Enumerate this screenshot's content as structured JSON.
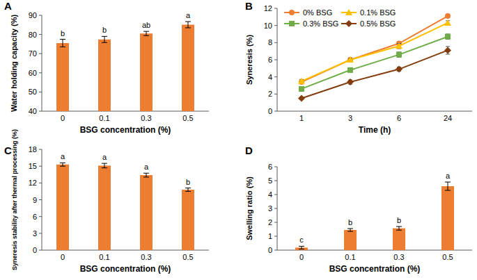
{
  "chart_data": [
    {
      "type": "bar",
      "title": "A",
      "categories": [
        "0",
        "0.1",
        "0.3",
        "0.5"
      ],
      "values": [
        75.5,
        77.4,
        80.5,
        85.1
      ],
      "errors": [
        2.0,
        1.6,
        1.1,
        1.6
      ],
      "annotations": [
        "b",
        "b",
        "ab",
        "a"
      ],
      "color": "#ED7D31",
      "x_label": "BSG concentration (%)",
      "y_label": "Water holding capacity (%)",
      "ylim": [
        40,
        90
      ],
      "yticks": [
        40,
        50,
        60,
        70,
        80,
        90
      ]
    },
    {
      "type": "line",
      "title": "B",
      "categories": [
        "1",
        "3",
        "6",
        "24"
      ],
      "series": [
        {
          "name": "0% BSG",
          "color": "#ED7D31",
          "marker": "circle",
          "values": [
            3.4,
            6.0,
            7.9,
            11.1
          ],
          "errors": [
            0.2,
            0.2,
            0.2,
            0.15
          ]
        },
        {
          "name": "0.1% BSG",
          "color": "#FFC000",
          "marker": "triangle",
          "values": [
            3.5,
            6.0,
            7.6,
            10.3
          ],
          "errors": [
            0.2,
            0.2,
            0.3,
            0.25
          ]
        },
        {
          "name": "0.3% BSG",
          "color": "#70AD47",
          "marker": "square",
          "values": [
            2.6,
            4.8,
            6.6,
            8.7
          ],
          "errors": [
            0.25,
            0.25,
            0.3,
            0.3
          ]
        },
        {
          "name": "0.5% BSG",
          "color": "#843C0C",
          "marker": "diamond",
          "values": [
            1.5,
            3.4,
            4.9,
            7.1
          ],
          "errors": [
            0.1,
            0.25,
            0.25,
            0.45
          ]
        }
      ],
      "x_label": "Time (h)",
      "y_label": "Syneresis (%)",
      "ylim": [
        0,
        12
      ],
      "yticks": [
        0,
        2,
        4,
        6,
        8,
        10,
        12
      ],
      "legend": "upper left"
    },
    {
      "type": "bar",
      "title": "C",
      "categories": [
        "0",
        "0.1",
        "0.3",
        "0.5"
      ],
      "values": [
        15.3,
        15.1,
        13.4,
        10.8
      ],
      "errors": [
        0.3,
        0.4,
        0.35,
        0.3
      ],
      "annotations": [
        "a",
        "a",
        "a",
        "b"
      ],
      "color": "#ED7D31",
      "x_label": "BSG concentration (%)",
      "y_label": "Syneresis stability after thermal processing (%)",
      "ylim": [
        0,
        18
      ],
      "yticks": [
        0,
        3,
        6,
        9,
        12,
        15,
        18
      ]
    },
    {
      "type": "bar",
      "title": "D",
      "categories": [
        "0",
        "0.1",
        "0.3",
        "0.5"
      ],
      "values": [
        0.18,
        1.45,
        1.57,
        4.6
      ],
      "errors": [
        0.1,
        0.1,
        0.13,
        0.3
      ],
      "annotations": [
        "c",
        "b",
        "b",
        "a"
      ],
      "color": "#ED7D31",
      "x_label": "BSG concentration (%)",
      "y_label": "Swelling ratio (%)",
      "ylim": [
        0,
        6
      ],
      "yticks": [
        0,
        1,
        2,
        3,
        4,
        5,
        6
      ]
    }
  ]
}
